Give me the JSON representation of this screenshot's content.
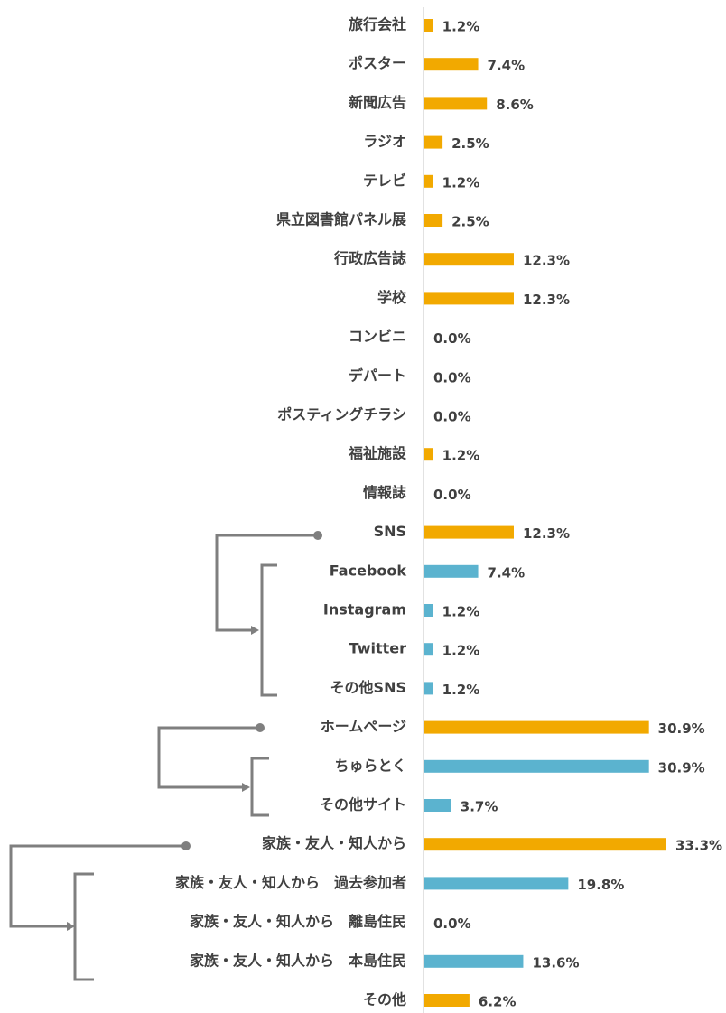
{
  "chart_data": {
    "type": "bar",
    "orientation": "horizontal",
    "categories": [
      "旅行会社",
      "ポスター",
      "新聞広告",
      "ラジオ",
      "テレビ",
      "県立図書館パネル展",
      "行政広告誌",
      "学校",
      "コンビニ",
      "デパート",
      "ポスティングチラシ",
      "福祉施設",
      "情報誌",
      "SNS",
      "Facebook",
      "Instagram",
      "Twitter",
      "その他SNS",
      "ホームページ",
      "ちゅらとく",
      "その他サイト",
      "家族・友人・知人から",
      "家族・友人・知人から　過去参加者",
      "家族・友人・知人から　離島住民",
      "家族・友人・知人から　本島住民",
      "その他"
    ],
    "values": [
      1.2,
      7.4,
      8.6,
      2.5,
      1.2,
      2.5,
      12.3,
      12.3,
      0.0,
      0.0,
      0.0,
      1.2,
      0.0,
      12.3,
      7.4,
      1.2,
      1.2,
      1.2,
      30.9,
      30.9,
      3.7,
      33.3,
      19.8,
      0.0,
      13.6,
      6.2
    ],
    "value_labels": [
      "1.2%",
      "7.4%",
      "8.6%",
      "2.5%",
      "1.2%",
      "2.5%",
      "12.3%",
      "12.3%",
      "0.0%",
      "0.0%",
      "0.0%",
      "1.2%",
      "0.0%",
      "12.3%",
      "7.4%",
      "1.2%",
      "1.2%",
      "1.2%",
      "30.9%",
      "30.9%",
      "3.7%",
      "33.3%",
      "19.8%",
      "0.0%",
      "13.6%",
      "6.2%"
    ],
    "colors": [
      "#f2a900",
      "#f2a900",
      "#f2a900",
      "#f2a900",
      "#f2a900",
      "#f2a900",
      "#f2a900",
      "#f2a900",
      "#f2a900",
      "#f2a900",
      "#f2a900",
      "#f2a900",
      "#f2a900",
      "#f2a900",
      "#5bb3cf",
      "#5bb3cf",
      "#5bb3cf",
      "#5bb3cf",
      "#f2a900",
      "#5bb3cf",
      "#5bb3cf",
      "#f2a900",
      "#5bb3cf",
      "#5bb3cf",
      "#5bb3cf",
      "#f2a900"
    ]
  }
}
